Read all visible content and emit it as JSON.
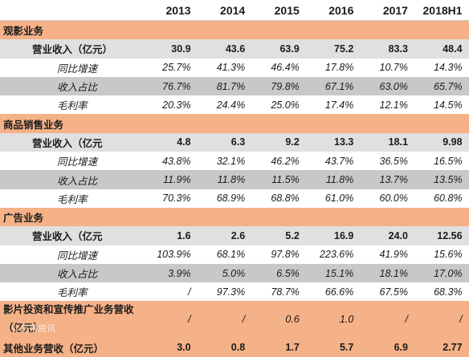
{
  "header": {
    "years": [
      "2013",
      "2014",
      "2015",
      "2016",
      "2017",
      "2018H1"
    ]
  },
  "sections": [
    {
      "title": "观影业务",
      "revenue": {
        "label": "营业收入（亿元）",
        "values": [
          "30.9",
          "43.6",
          "63.9",
          "75.2",
          "83.3",
          "48.4"
        ]
      },
      "rows": [
        {
          "label": "同比增速",
          "values": [
            "25.7%",
            "41.3%",
            "46.4%",
            "17.8%",
            "10.7%",
            "14.3%"
          ]
        },
        {
          "label": "收入占比",
          "values": [
            "76.7%",
            "81.7%",
            "79.8%",
            "67.1%",
            "63.0%",
            "65.7%"
          ]
        },
        {
          "label": "毛利率",
          "values": [
            "20.3%",
            "24.4%",
            "25.0%",
            "17.4%",
            "12.1%",
            "14.5%"
          ]
        }
      ]
    },
    {
      "title": "商品销售业务",
      "revenue": {
        "label": "营业收入（亿元",
        "values": [
          "4.8",
          "6.3",
          "9.2",
          "13.3",
          "18.1",
          "9.98"
        ]
      },
      "rows": [
        {
          "label": "同比增速",
          "values": [
            "43.8%",
            "32.1%",
            "46.2%",
            "43.7%",
            "36.5%",
            "16.5%"
          ]
        },
        {
          "label": "收入占比",
          "values": [
            "11.9%",
            "11.8%",
            "11.5%",
            "11.8%",
            "13.7%",
            "13.5%"
          ]
        },
        {
          "label": "毛利率",
          "values": [
            "70.3%",
            "68.9%",
            "68.8%",
            "61.0%",
            "60.0%",
            "60.8%"
          ]
        }
      ]
    },
    {
      "title": "广告业务",
      "revenue": {
        "label": "营业收入（亿元",
        "values": [
          "1.6",
          "2.6",
          "5.2",
          "16.9",
          "24.0",
          "12.56"
        ]
      },
      "rows": [
        {
          "label": "同比增速",
          "values": [
            "103.9%",
            "68.1%",
            "97.8%",
            "223.6%",
            "41.9%",
            "15.6%"
          ]
        },
        {
          "label": "收入占比",
          "values": [
            "3.9%",
            "5.0%",
            "6.5%",
            "15.1%",
            "18.1%",
            "17.0%"
          ]
        },
        {
          "label": "毛利率",
          "values": [
            "/",
            "97.3%",
            "78.7%",
            "66.6%",
            "67.5%",
            "68.3%"
          ]
        }
      ]
    }
  ],
  "film_investment": {
    "label_line1": "影片投资和宣传推广业务营收",
    "label_line2": "（亿元）",
    "values": [
      "/",
      "/",
      "0.6",
      "1.0",
      "/",
      "/"
    ]
  },
  "other": {
    "label": "其他业务营收（亿元）",
    "values": [
      "3.0",
      "0.8",
      "1.7",
      "5.7",
      "6.9",
      "2.77"
    ]
  },
  "watermark": "©万得资讯"
}
